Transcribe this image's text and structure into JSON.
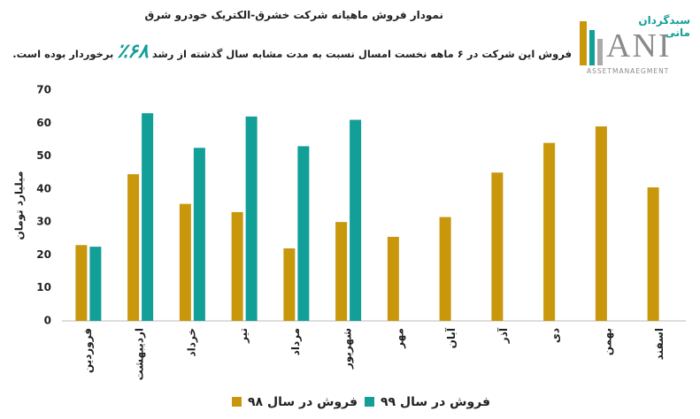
{
  "chart_data": {
    "type": "bar",
    "title": "نمودار فروش ماهیانه شرکت خشرق-الکتریک خودرو شرق",
    "subtitle_start": "فروش این شرکت در ۶ ماهه نخست امسال نسبت به مدت مشابه سال گذشته از رشد",
    "subtitle_highlight": "۶۸٪",
    "subtitle_end": "برخوردار بوده است.",
    "y_label": "میلیارد تومان",
    "categories": [
      "فروردین",
      "اردیبهشت",
      "خرداد",
      "تیر",
      "مرداد",
      "شهریور",
      "مهر",
      "آبان",
      "آذر",
      "دی",
      "بهمن",
      "اسفند"
    ],
    "series": [
      {
        "name": "فروش در سال ۹۸",
        "color": "#c9970c",
        "values": [
          23,
          44.5,
          35.5,
          33,
          22,
          30,
          25.5,
          31.5,
          45,
          54,
          59,
          40.5
        ]
      },
      {
        "name": "فروش در سال ۹۹",
        "color": "#119f98",
        "values": [
          22.5,
          63,
          52.5,
          62,
          53,
          61,
          null,
          null,
          null,
          null,
          null,
          null
        ]
      }
    ],
    "ylim": [
      0,
      70
    ],
    "yticks": [
      0,
      10,
      20,
      30,
      40,
      50,
      60,
      70
    ],
    "grid": false,
    "logo": {
      "persian": "سبدگردان مانی",
      "latin": "ANI",
      "tagline": "ASSETMANAEGMENT"
    }
  }
}
